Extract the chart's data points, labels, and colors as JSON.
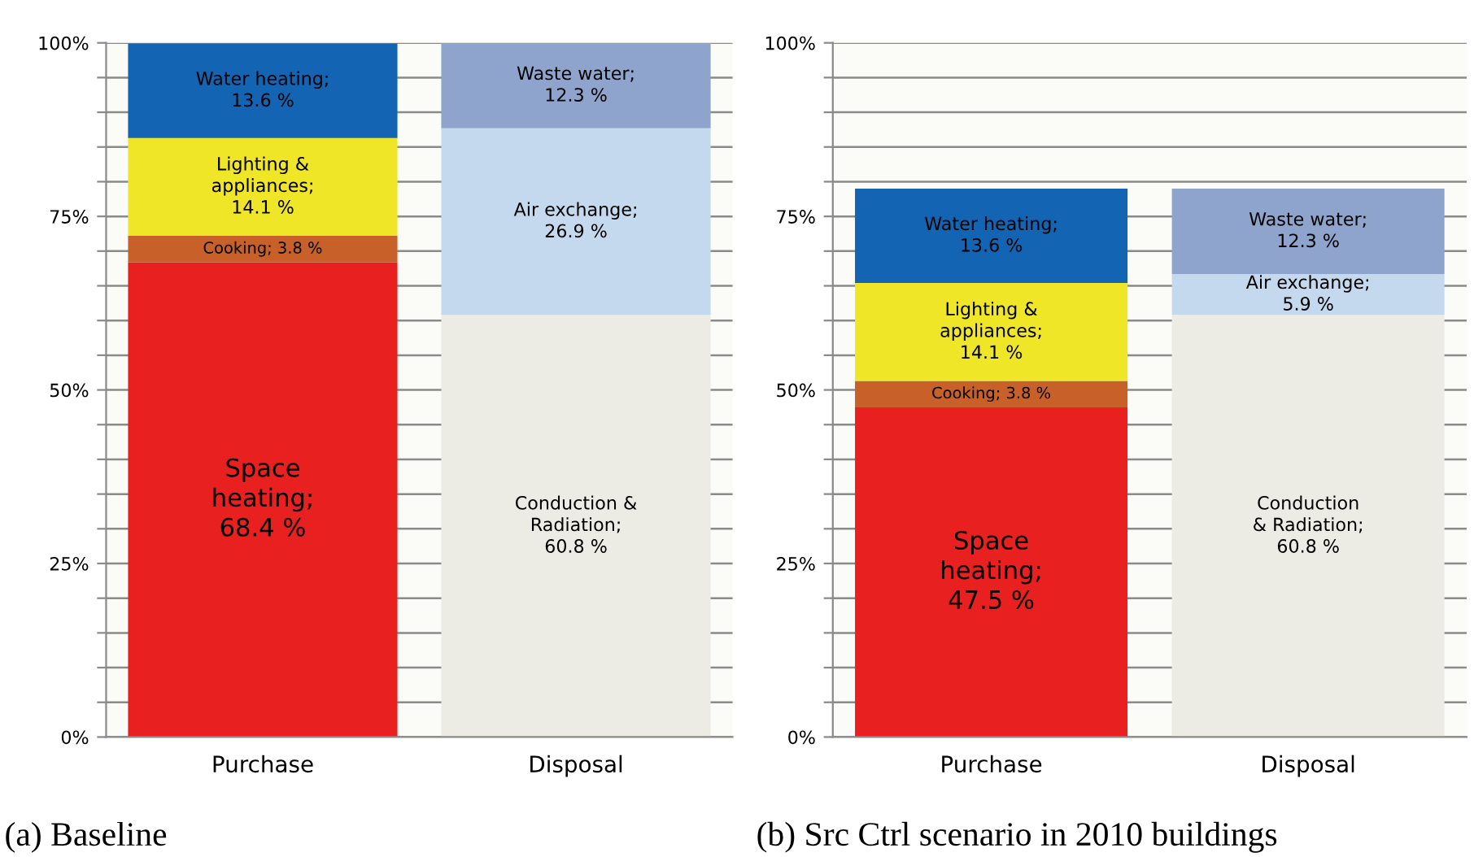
{
  "chart_data": [
    {
      "type": "bar",
      "stacked": true,
      "categories": [
        "Purchase",
        "Disposal"
      ],
      "ylim": [
        0,
        100
      ],
      "grid": "y",
      "yticks": [
        {
          "value": 0,
          "label": "0%"
        },
        {
          "value": 5,
          "label": null
        },
        {
          "value": 10,
          "label": null
        },
        {
          "value": 15,
          "label": null
        },
        {
          "value": 20,
          "label": null
        },
        {
          "value": 25,
          "label": "25%"
        },
        {
          "value": 30,
          "label": null
        },
        {
          "value": 35,
          "label": null
        },
        {
          "value": 40,
          "label": null
        },
        {
          "value": 45,
          "label": null
        },
        {
          "value": 50,
          "label": "50%"
        },
        {
          "value": 55,
          "label": null
        },
        {
          "value": 60,
          "label": null
        },
        {
          "value": 65,
          "label": null
        },
        {
          "value": 70,
          "label": null
        },
        {
          "value": 75,
          "label": "75%"
        },
        {
          "value": 80,
          "label": null
        },
        {
          "value": 85,
          "label": null
        },
        {
          "value": 90,
          "label": null
        },
        {
          "value": 95,
          "label": null
        },
        {
          "value": 100,
          "label": "100%"
        }
      ],
      "series": [
        {
          "values": [
            68.4,
            60.8
          ],
          "colors": [
            "#e82020",
            "#ecebe4"
          ],
          "value_labels": [
            "Space\nheating;\n68.4 %",
            "Conduction &\nRadiation;\n60.8 %"
          ]
        },
        {
          "values": [
            3.8,
            26.9
          ],
          "colors": [
            "#c8602a",
            "#c4d8ee"
          ],
          "value_labels": [
            "Cooking; 3.8 %",
            "Air exchange;\n26.9 %"
          ]
        },
        {
          "values": [
            14.1,
            12.3
          ],
          "colors": [
            "#f0e628",
            "#8ea4cc"
          ],
          "value_labels": [
            "Lighting &\nappliances;\n14.1 %",
            "Waste water;\n12.3 %"
          ]
        },
        {
          "color": "#1464b4",
          "values": [
            13.6,
            null
          ],
          "value_labels": [
            "Water heating;\n13.6 %",
            null
          ]
        }
      ],
      "annotations": [
        "(a) Baseline"
      ]
    },
    {
      "type": "bar",
      "stacked": true,
      "categories": [
        "Purchase",
        "Disposal"
      ],
      "ylim": [
        0,
        100
      ],
      "grid": "y",
      "yticks": [
        {
          "value": 0,
          "label": "0%"
        },
        {
          "value": 5,
          "label": null
        },
        {
          "value": 10,
          "label": null
        },
        {
          "value": 15,
          "label": null
        },
        {
          "value": 20,
          "label": null
        },
        {
          "value": 25,
          "label": "25%"
        },
        {
          "value": 30,
          "label": null
        },
        {
          "value": 35,
          "label": null
        },
        {
          "value": 40,
          "label": null
        },
        {
          "value": 45,
          "label": null
        },
        {
          "value": 50,
          "label": "50%"
        },
        {
          "value": 55,
          "label": null
        },
        {
          "value": 60,
          "label": null
        },
        {
          "value": 65,
          "label": null
        },
        {
          "value": 70,
          "label": null
        },
        {
          "value": 75,
          "label": "75%"
        },
        {
          "value": 80,
          "label": null
        },
        {
          "value": 85,
          "label": null
        },
        {
          "value": 90,
          "label": null
        },
        {
          "value": 95,
          "label": null
        },
        {
          "value": 100,
          "label": "100%"
        }
      ],
      "series": [
        {
          "values": [
            47.5,
            60.8
          ],
          "colors": [
            "#e82020",
            "#ecebe4"
          ],
          "value_labels": [
            "Space\nheating;\n47.5 %",
            "Conduction\n& Radiation;\n60.8 %"
          ]
        },
        {
          "values": [
            3.8,
            5.9
          ],
          "colors": [
            "#c8602a",
            "#c4d8ee"
          ],
          "value_labels": [
            "Cooking; 3.8 %",
            "Air exchange;\n5.9 %"
          ]
        },
        {
          "values": [
            14.1,
            12.3
          ],
          "colors": [
            "#f0e628",
            "#8ea4cc"
          ],
          "value_labels": [
            "Lighting &\nappliances;\n14.1 %",
            "Waste water;\n12.3 %"
          ]
        },
        {
          "color": "#1464b4",
          "values": [
            13.6,
            null
          ],
          "value_labels": [
            "Water heating;\n13.6 %",
            null
          ]
        }
      ],
      "annotations": [
        "(b) Src Ctrl scenario in 2010 buildings"
      ]
    }
  ]
}
